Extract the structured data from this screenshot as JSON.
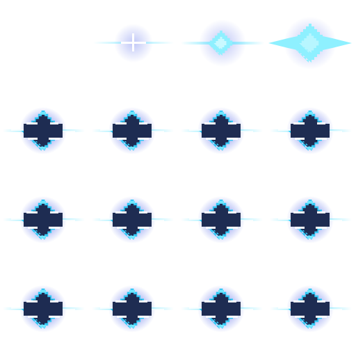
{
  "sprite_sheet": {
    "grid": {
      "columns": 4,
      "rows": 4
    },
    "palette": {
      "background": "#ffffff",
      "glow": "#3f56e6",
      "core_dark": "#1e2c52",
      "outline_cyan": "#33c9f5",
      "inner_cyan": "#6fe6ff",
      "highlight": "#ffffff",
      "pale_cyan": "#8ef0ff"
    },
    "frames": [
      {
        "kind": "empty"
      },
      {
        "kind": "spark-plus"
      },
      {
        "kind": "spark-small"
      },
      {
        "kind": "spark-large"
      },
      {
        "kind": "core"
      },
      {
        "kind": "core"
      },
      {
        "kind": "core"
      },
      {
        "kind": "core"
      },
      {
        "kind": "core"
      },
      {
        "kind": "core"
      },
      {
        "kind": "core"
      },
      {
        "kind": "core"
      },
      {
        "kind": "core"
      },
      {
        "kind": "core"
      },
      {
        "kind": "core"
      },
      {
        "kind": "core"
      }
    ]
  }
}
